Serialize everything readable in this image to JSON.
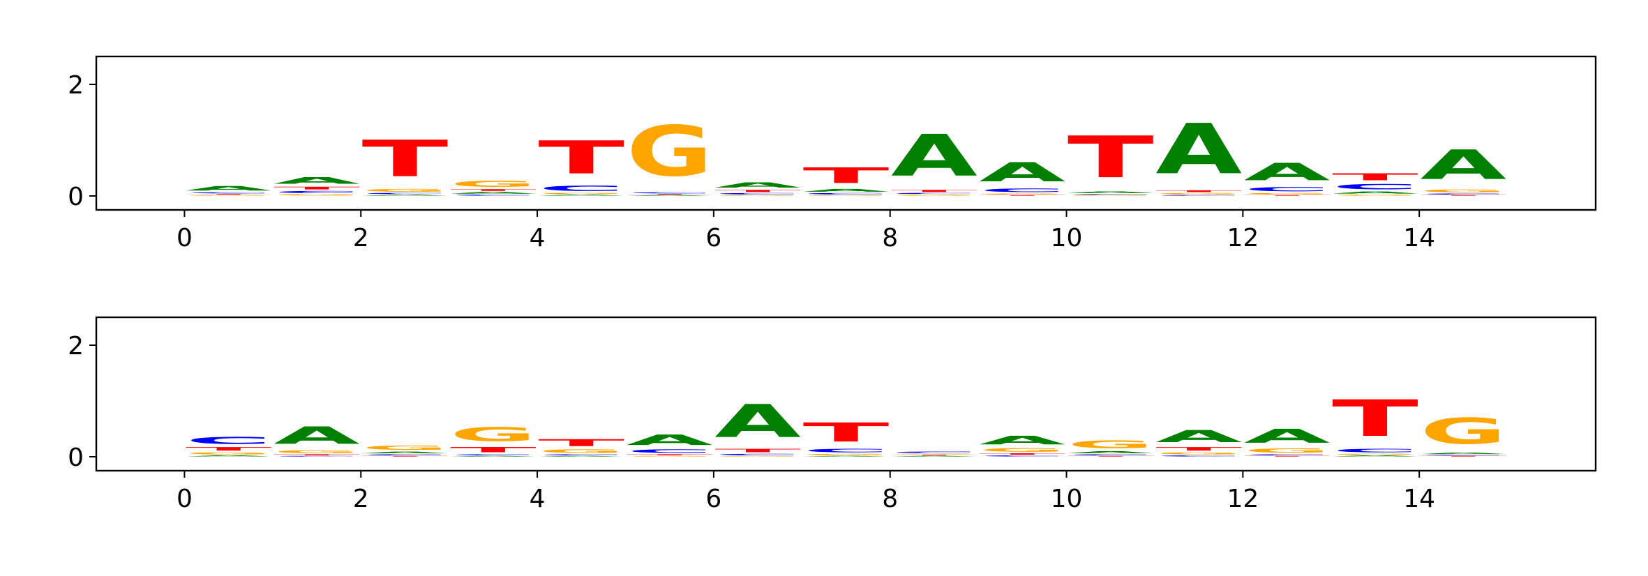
{
  "chart_data": [
    {
      "type": "sequence-logo",
      "title": "",
      "xlabel": "",
      "ylabel": "",
      "xlim": [
        -1,
        16
      ],
      "ylim": [
        -0.25,
        2.5
      ],
      "xticks": [
        "0",
        "2",
        "4",
        "6",
        "8",
        "10",
        "12",
        "14"
      ],
      "yticks": [
        "0",
        "2"
      ],
      "grid": false,
      "positions": [
        {
          "pos": 0,
          "letters": [
            {
              "base": "G",
              "h": 0.02
            },
            {
              "base": "T",
              "h": 0.02
            },
            {
              "base": "C",
              "h": 0.03
            },
            {
              "base": "A",
              "h": 0.13
            }
          ]
        },
        {
          "pos": 1,
          "letters": [
            {
              "base": "G",
              "h": 0.04
            },
            {
              "base": "C",
              "h": 0.06
            },
            {
              "base": "T",
              "h": 0.08
            },
            {
              "base": "A",
              "h": 0.19
            }
          ]
        },
        {
          "pos": 2,
          "letters": [
            {
              "base": "A",
              "h": 0.03
            },
            {
              "base": "C",
              "h": 0.03
            },
            {
              "base": "G",
              "h": 0.08
            },
            {
              "base": "T",
              "h": 1.05
            }
          ]
        },
        {
          "pos": 3,
          "letters": [
            {
              "base": "C",
              "h": 0.03
            },
            {
              "base": "A",
              "h": 0.05
            },
            {
              "base": "T",
              "h": 0.05
            },
            {
              "base": "G",
              "h": 0.17
            }
          ]
        },
        {
          "pos": 4,
          "letters": [
            {
              "base": "A",
              "h": 0.03
            },
            {
              "base": "G",
              "h": 0.03
            },
            {
              "base": "C",
              "h": 0.15
            },
            {
              "base": "T",
              "h": 0.95
            }
          ]
        },
        {
          "pos": 5,
          "letters": [
            {
              "base": "A",
              "h": 0.02
            },
            {
              "base": "T",
              "h": 0.02
            },
            {
              "base": "C",
              "h": 0.03
            },
            {
              "base": "G",
              "h": 1.45
            }
          ]
        },
        {
          "pos": 6,
          "letters": [
            {
              "base": "G",
              "h": 0.02
            },
            {
              "base": "C",
              "h": 0.04
            },
            {
              "base": "T",
              "h": 0.06
            },
            {
              "base": "A",
              "h": 0.15
            }
          ]
        },
        {
          "pos": 7,
          "letters": [
            {
              "base": "G",
              "h": 0.02
            },
            {
              "base": "C",
              "h": 0.04
            },
            {
              "base": "A",
              "h": 0.08
            },
            {
              "base": "T",
              "h": 0.45
            }
          ]
        },
        {
          "pos": 8,
          "letters": [
            {
              "base": "G",
              "h": 0.03
            },
            {
              "base": "C",
              "h": 0.03
            },
            {
              "base": "T",
              "h": 0.06
            },
            {
              "base": "A",
              "h": 1.2
            }
          ]
        },
        {
          "pos": 9,
          "letters": [
            {
              "base": "T",
              "h": 0.02
            },
            {
              "base": "G",
              "h": 0.03
            },
            {
              "base": "C",
              "h": 0.1
            },
            {
              "base": "A",
              "h": 0.55
            }
          ]
        },
        {
          "pos": 10,
          "letters": [
            {
              "base": "G",
              "h": 0.02
            },
            {
              "base": "C",
              "h": 0.02
            },
            {
              "base": "A",
              "h": 0.05
            },
            {
              "base": "T",
              "h": 1.2
            }
          ]
        },
        {
          "pos": 11,
          "letters": [
            {
              "base": "C",
              "h": 0.02
            },
            {
              "base": "G",
              "h": 0.04
            },
            {
              "base": "T",
              "h": 0.05
            },
            {
              "base": "A",
              "h": 1.45
            }
          ]
        },
        {
          "pos": 12,
          "letters": [
            {
              "base": "T",
              "h": 0.02
            },
            {
              "base": "G",
              "h": 0.04
            },
            {
              "base": "C",
              "h": 0.12
            },
            {
              "base": "A",
              "h": 0.5
            }
          ]
        },
        {
          "pos": 13,
          "letters": [
            {
              "base": "G",
              "h": 0.03
            },
            {
              "base": "A",
              "h": 0.06
            },
            {
              "base": "C",
              "h": 0.15
            },
            {
              "base": "T",
              "h": 0.2
            }
          ]
        },
        {
          "pos": 14,
          "letters": [
            {
              "base": "T",
              "h": 0.02
            },
            {
              "base": "C",
              "h": 0.03
            },
            {
              "base": "G",
              "h": 0.08
            },
            {
              "base": "A",
              "h": 0.85
            }
          ]
        }
      ]
    },
    {
      "type": "sequence-logo",
      "title": "",
      "xlabel": "",
      "ylabel": "",
      "xlim": [
        -1,
        16
      ],
      "ylim": [
        -0.25,
        2.5
      ],
      "xticks": [
        "0",
        "2",
        "4",
        "6",
        "8",
        "10",
        "12",
        "14"
      ],
      "yticks": [
        "0",
        "2"
      ],
      "grid": false,
      "positions": [
        {
          "pos": 0,
          "letters": [
            {
              "base": "A",
              "h": 0.03
            },
            {
              "base": "G",
              "h": 0.06
            },
            {
              "base": "T",
              "h": 0.1
            },
            {
              "base": "C",
              "h": 0.2
            }
          ]
        },
        {
          "pos": 1,
          "letters": [
            {
              "base": "C",
              "h": 0.02
            },
            {
              "base": "T",
              "h": 0.03
            },
            {
              "base": "G",
              "h": 0.08
            },
            {
              "base": "A",
              "h": 0.5
            }
          ]
        },
        {
          "pos": 2,
          "letters": [
            {
              "base": "T",
              "h": 0.02
            },
            {
              "base": "C",
              "h": 0.03
            },
            {
              "base": "A",
              "h": 0.05
            },
            {
              "base": "G",
              "h": 0.12
            }
          ]
        },
        {
          "pos": 3,
          "letters": [
            {
              "base": "A",
              "h": 0.02
            },
            {
              "base": "C",
              "h": 0.03
            },
            {
              "base": "T",
              "h": 0.15
            },
            {
              "base": "G",
              "h": 0.4
            }
          ]
        },
        {
          "pos": 4,
          "letters": [
            {
              "base": "A",
              "h": 0.02
            },
            {
              "base": "C",
              "h": 0.03
            },
            {
              "base": "G",
              "h": 0.1
            },
            {
              "base": "T",
              "h": 0.2
            }
          ]
        },
        {
          "pos": 5,
          "letters": [
            {
              "base": "G",
              "h": 0.02
            },
            {
              "base": "T",
              "h": 0.03
            },
            {
              "base": "C",
              "h": 0.1
            },
            {
              "base": "A",
              "h": 0.3
            }
          ]
        },
        {
          "pos": 6,
          "letters": [
            {
              "base": "G",
              "h": 0.02
            },
            {
              "base": "C",
              "h": 0.04
            },
            {
              "base": "T",
              "h": 0.1
            },
            {
              "base": "A",
              "h": 0.95
            }
          ]
        },
        {
          "pos": 7,
          "letters": [
            {
              "base": "A",
              "h": 0.02
            },
            {
              "base": "G",
              "h": 0.04
            },
            {
              "base": "C",
              "h": 0.1
            },
            {
              "base": "T",
              "h": 0.55
            }
          ]
        },
        {
          "pos": 8,
          "letters": [
            {
              "base": "A",
              "h": 0.02
            },
            {
              "base": "T",
              "h": 0.02
            },
            {
              "base": "G",
              "h": 0.02
            },
            {
              "base": "C",
              "h": 0.04
            }
          ]
        },
        {
          "pos": 9,
          "letters": [
            {
              "base": "C",
              "h": 0.03
            },
            {
              "base": "T",
              "h": 0.04
            },
            {
              "base": "G",
              "h": 0.1
            },
            {
              "base": "A",
              "h": 0.25
            }
          ]
        },
        {
          "pos": 10,
          "letters": [
            {
              "base": "T",
              "h": 0.02
            },
            {
              "base": "C",
              "h": 0.03
            },
            {
              "base": "A",
              "h": 0.06
            },
            {
              "base": "G",
              "h": 0.22
            }
          ]
        },
        {
          "pos": 11,
          "letters": [
            {
              "base": "C",
              "h": 0.03
            },
            {
              "base": "G",
              "h": 0.06
            },
            {
              "base": "T",
              "h": 0.1
            },
            {
              "base": "A",
              "h": 0.35
            }
          ]
        },
        {
          "pos": 12,
          "letters": [
            {
              "base": "T",
              "h": 0.02
            },
            {
              "base": "C",
              "h": 0.03
            },
            {
              "base": "G",
              "h": 0.12
            },
            {
              "base": "A",
              "h": 0.4
            }
          ]
        },
        {
          "pos": 13,
          "letters": [
            {
              "base": "A",
              "h": 0.03
            },
            {
              "base": "G",
              "h": 0.03
            },
            {
              "base": "C",
              "h": 0.1
            },
            {
              "base": "T",
              "h": 1.05
            }
          ]
        },
        {
          "pos": 14,
          "letters": [
            {
              "base": "T",
              "h": 0.02
            },
            {
              "base": "C",
              "h": 0.02
            },
            {
              "base": "A",
              "h": 0.04
            },
            {
              "base": "G",
              "h": 0.75
            }
          ]
        }
      ]
    }
  ],
  "colors": {
    "A": "#008000",
    "C": "#0000ff",
    "G": "#ffa500",
    "T": "#ff0000",
    "axis": "#000000",
    "background": "#ffffff"
  }
}
